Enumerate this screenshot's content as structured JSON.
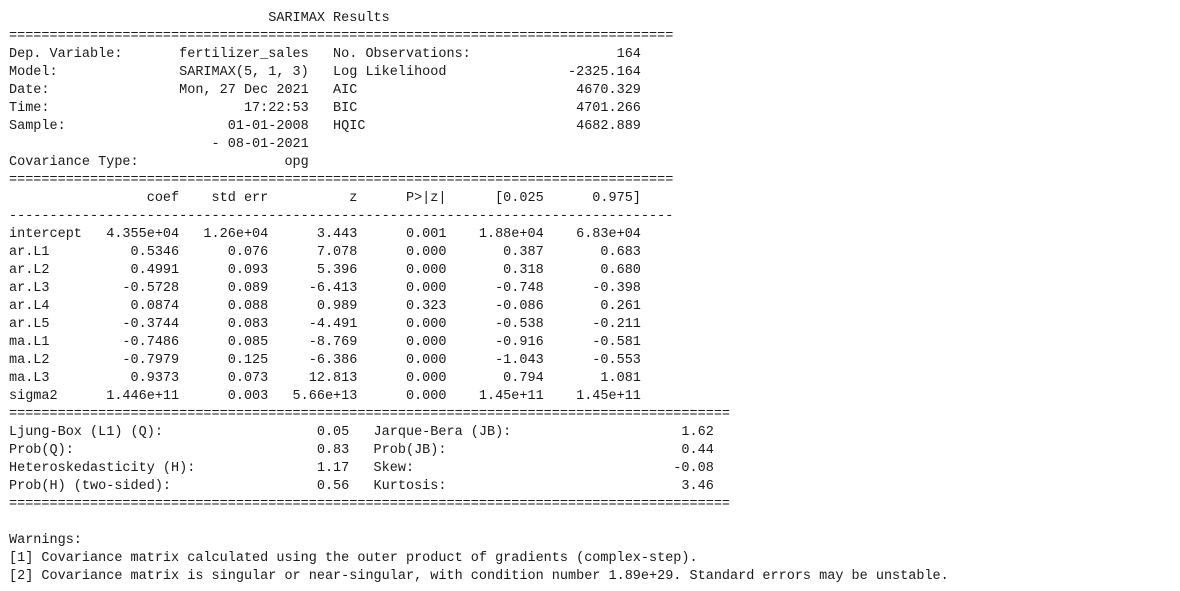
{
  "report": {
    "lines": [
      "                                SARIMAX Results",
      "==================================================================================",
      "Dep. Variable:       fertilizer_sales   No. Observations:                  164",
      "Model:               SARIMAX(5, 1, 3)   Log Likelihood               -2325.164",
      "Date:                Mon, 27 Dec 2021   AIC                           4670.329",
      "Time:                        17:22:53   BIC                           4701.266",
      "Sample:                    01-01-2008   HQIC                          4682.889",
      "                         - 08-01-2021",
      "Covariance Type:                  opg",
      "==================================================================================",
      "                 coef    std err          z      P>|z|      [0.025      0.975]",
      "----------------------------------------------------------------------------------",
      "intercept   4.355e+04   1.26e+04      3.443      0.001    1.88e+04    6.83e+04",
      "ar.L1          0.5346      0.076      7.078      0.000       0.387       0.683",
      "ar.L2          0.4991      0.093      5.396      0.000       0.318       0.680",
      "ar.L3         -0.5728      0.089     -6.413      0.000      -0.748      -0.398",
      "ar.L4          0.0874      0.088      0.989      0.323      -0.086       0.261",
      "ar.L5         -0.3744      0.083     -4.491      0.000      -0.538      -0.211",
      "ma.L1         -0.7486      0.085     -8.769      0.000      -0.916      -0.581",
      "ma.L2         -0.7979      0.125     -6.386      0.000      -1.043      -0.553",
      "ma.L3          0.9373      0.073     12.813      0.000       0.794       1.081",
      "sigma2      1.446e+11      0.003   5.66e+13      0.000    1.45e+11    1.45e+11",
      "=========================================================================================",
      "Ljung-Box (L1) (Q):                   0.05   Jarque-Bera (JB):                     1.62",
      "Prob(Q):                              0.83   Prob(JB):                             0.44",
      "Heteroskedasticity (H):               1.17   Skew:                                -0.08",
      "Prob(H) (two-sided):                  0.56   Kurtosis:                             3.46",
      "=========================================================================================",
      "",
      "Warnings:",
      "[1] Covariance matrix calculated using the outer product of gradients (complex-step).",
      "[2] Covariance matrix is singular or near-singular, with condition number 1.89e+29. Standard errors may be unstable."
    ]
  }
}
